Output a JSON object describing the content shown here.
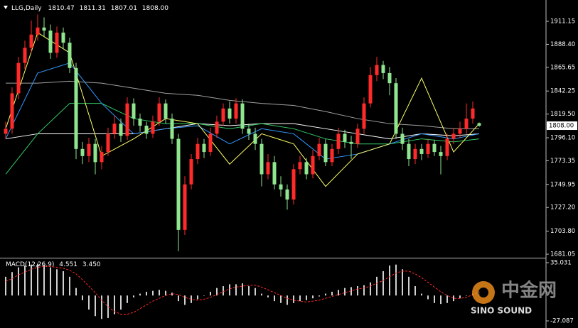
{
  "chart_data": [
    {
      "type": "candlestick",
      "title": "LLG,Daily",
      "open": [
        1800,
        1805,
        1840,
        1870,
        1885,
        1898,
        1905,
        1902,
        1880,
        1900,
        1890,
        1865,
        1785,
        1778,
        1790,
        1772,
        1782,
        1800,
        1810,
        1798,
        1830,
        1815,
        1808,
        1800,
        1812,
        1830,
        1815,
        1795,
        1705,
        1750,
        1775,
        1790,
        1782,
        1800,
        1812,
        1825,
        1815,
        1830,
        1805,
        1800,
        1790,
        1760,
        1772,
        1750,
        1745,
        1735,
        1765,
        1772,
        1760,
        1778,
        1790,
        1772,
        1785,
        1800,
        1792,
        1790,
        1805,
        1830,
        1858,
        1868,
        1860,
        1850,
        1800,
        1790,
        1775,
        1785,
        1780,
        1790,
        1782,
        1778,
        1795,
        1800,
        1805,
        1815,
        1810.47
      ],
      "high": [
        1812,
        1846,
        1876,
        1892,
        1912,
        1918,
        1915,
        1908,
        1906,
        1905,
        1895,
        1870,
        1792,
        1796,
        1795,
        1788,
        1806,
        1818,
        1815,
        1836,
        1835,
        1820,
        1812,
        1818,
        1836,
        1834,
        1820,
        1800,
        1758,
        1780,
        1796,
        1795,
        1806,
        1818,
        1830,
        1832,
        1835,
        1834,
        1810,
        1806,
        1795,
        1780,
        1778,
        1758,
        1750,
        1770,
        1778,
        1776,
        1784,
        1796,
        1795,
        1790,
        1806,
        1804,
        1798,
        1810,
        1836,
        1866,
        1876,
        1872,
        1866,
        1855,
        1806,
        1795,
        1790,
        1790,
        1795,
        1794,
        1788,
        1800,
        1806,
        1812,
        1830,
        1832,
        1811.31
      ],
      "low": [
        1795,
        1800,
        1834,
        1864,
        1880,
        1892,
        1896,
        1874,
        1875,
        1884,
        1860,
        1775,
        1770,
        1772,
        1760,
        1765,
        1778,
        1795,
        1792,
        1794,
        1808,
        1802,
        1795,
        1796,
        1808,
        1810,
        1790,
        1684,
        1700,
        1745,
        1770,
        1776,
        1778,
        1796,
        1808,
        1810,
        1810,
        1800,
        1794,
        1784,
        1748,
        1755,
        1745,
        1738,
        1725,
        1730,
        1760,
        1755,
        1756,
        1774,
        1768,
        1768,
        1780,
        1786,
        1775,
        1786,
        1800,
        1826,
        1852,
        1854,
        1838,
        1795,
        1784,
        1768,
        1770,
        1774,
        1776,
        1778,
        1760,
        1774,
        1790,
        1796,
        1800,
        1810,
        1807.01
      ],
      "close": [
        1805,
        1840,
        1870,
        1885,
        1898,
        1905,
        1902,
        1880,
        1900,
        1890,
        1865,
        1785,
        1778,
        1790,
        1772,
        1782,
        1800,
        1810,
        1798,
        1830,
        1815,
        1808,
        1800,
        1812,
        1830,
        1815,
        1795,
        1705,
        1750,
        1775,
        1790,
        1782,
        1800,
        1812,
        1825,
        1815,
        1830,
        1805,
        1800,
        1790,
        1760,
        1772,
        1750,
        1745,
        1735,
        1765,
        1772,
        1760,
        1778,
        1790,
        1772,
        1785,
        1800,
        1792,
        1790,
        1805,
        1830,
        1858,
        1868,
        1860,
        1850,
        1800,
        1790,
        1775,
        1785,
        1780,
        1790,
        1782,
        1778,
        1795,
        1800,
        1805,
        1815,
        1825,
        1808
      ],
      "close_label": "1808.00",
      "up_color": "#ff2a2a",
      "down_color": "#8fe68f",
      "ylim": [
        1678.24,
        1928.69
      ],
      "yticks": [
        1911.15,
        {
          "value": 1888.4,
          "label": "1888.40"
        },
        1865.65,
        1842.25,
        {
          "value": 1819.5,
          "label": "1819.50"
        },
        {
          "value": 1796.1,
          "label": "1796.10"
        },
        1773.35,
        1749.95,
        {
          "value": 1727.2,
          "label": "1727.20"
        },
        {
          "value": 1703.8,
          "label": "1703.80"
        },
        1681.05
      ],
      "ma": {
        "x": [
          0,
          5,
          10,
          15,
          20,
          25,
          30,
          35,
          40,
          45,
          50,
          55,
          60,
          65,
          70,
          74
        ],
        "series": [
          {
            "color": "#a0a0a0",
            "values": [
              1850,
              1850,
              1852,
              1850,
              1845,
              1840,
              1838,
              1833,
              1830,
              1828,
              1822,
              1815,
              1810,
              1808,
              1805,
              1805
            ]
          },
          {
            "color": "#ffffff",
            "values": [
              1795,
              1800,
              1800,
              1800,
              1800,
              1805,
              1810,
              1808,
              1810,
              1810,
              1805,
              1800,
              1795,
              1800,
              1798,
              1800
            ]
          },
          {
            "color": "#33cc66",
            "values": [
              1760,
              1800,
              1830,
              1830,
              1815,
              1810,
              1810,
              1805,
              1810,
              1805,
              1795,
              1790,
              1790,
              1795,
              1792,
              1795
            ]
          },
          {
            "color": "#3399ff",
            "values": [
              1795,
              1860,
              1870,
              1830,
              1800,
              1805,
              1808,
              1790,
              1805,
              1800,
              1775,
              1780,
              1790,
              1800,
              1795,
              1800
            ]
          },
          {
            "color": "#ffff66",
            "values": [
              1805,
              1900,
              1880,
              1778,
              1795,
              1815,
              1810,
              1770,
              1800,
              1790,
              1748,
              1780,
              1790,
              1855,
              1782,
              1810
            ]
          }
        ]
      }
    },
    {
      "type": "macd",
      "title": "MACD(12,26,9)",
      "histogram": [
        20,
        25,
        30,
        32,
        33,
        34,
        33,
        30,
        28,
        26,
        20,
        8,
        -5,
        -15,
        -22,
        -25,
        -24,
        -20,
        -15,
        -8,
        -2,
        2,
        4,
        5,
        6,
        5,
        3,
        -6,
        -10,
        -8,
        -4,
        0,
        4,
        8,
        10,
        12,
        12,
        13,
        10,
        8,
        2,
        -2,
        -6,
        -8,
        -10,
        -8,
        -6,
        -5,
        -3,
        -1,
        2,
        4,
        6,
        8,
        9,
        10,
        11,
        14,
        20,
        26,
        32,
        33,
        28,
        20,
        10,
        2,
        -4,
        -8,
        -9,
        -8,
        -6,
        -3,
        0,
        2,
        4.551
      ],
      "signal": [
        15,
        18,
        22,
        25,
        28,
        30,
        31,
        31,
        30,
        29,
        27,
        23,
        17,
        10,
        3,
        -5,
        -12,
        -17,
        -20,
        -20,
        -18,
        -14,
        -10,
        -6,
        -3,
        0,
        2,
        1,
        -2,
        -4,
        -5,
        -4,
        -2,
        1,
        4,
        7,
        9,
        10,
        11,
        11,
        9,
        6,
        3,
        0,
        -3,
        -5,
        -6,
        -7,
        -6,
        -5,
        -3,
        -1,
        1,
        3,
        5,
        7,
        8,
        10,
        13,
        16,
        20,
        24,
        26,
        26,
        23,
        19,
        14,
        9,
        4,
        0,
        -3,
        -3,
        -2,
        1,
        3.45
      ],
      "signal_label": "3.450",
      "histogram_color": "#d0d0d0",
      "signal_color": "#ff2a2a",
      "ylim": [
        -33.15,
        38.82
      ],
      "yticks": [
        35.031,
        -27.087
      ]
    }
  ],
  "watermark": {
    "cn": "中金网",
    "en": "SINO SOUND"
  }
}
